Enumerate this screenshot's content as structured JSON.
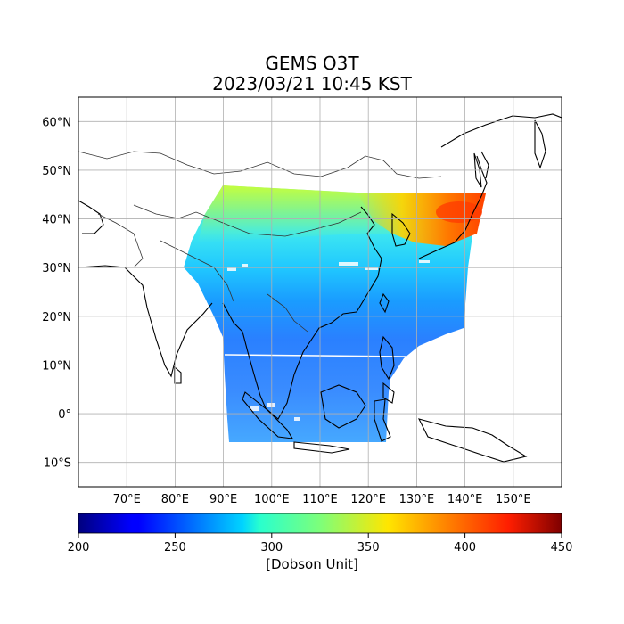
{
  "title": {
    "line1": "GEMS O3T",
    "line2": "2023/03/21 10:45 KST"
  },
  "map": {
    "lon_ticks": [
      "70°E",
      "80°E",
      "90°E",
      "100°E",
      "110°E",
      "120°E",
      "130°E",
      "140°E",
      "150°E"
    ],
    "lon_values": [
      70,
      80,
      90,
      100,
      110,
      120,
      130,
      140,
      150
    ],
    "lat_ticks": [
      "60°N",
      "50°N",
      "40°N",
      "30°N",
      "20°N",
      "10°N",
      "0°",
      "10°S"
    ],
    "lat_values": [
      60,
      50,
      40,
      30,
      20,
      10,
      0,
      -10
    ],
    "lon_range": [
      60,
      160
    ],
    "lat_range": [
      -15,
      65
    ],
    "grid": true
  },
  "colorbar": {
    "ticks": [
      "200",
      "250",
      "300",
      "350",
      "400",
      "450"
    ],
    "values": [
      200,
      250,
      300,
      350,
      400,
      450
    ],
    "range": [
      200,
      450
    ],
    "colormap": "jet",
    "label": "[Dobson Unit]"
  },
  "colors": {
    "low": "#00007f",
    "mid": "#7fff7f",
    "high": "#7f0000"
  }
}
